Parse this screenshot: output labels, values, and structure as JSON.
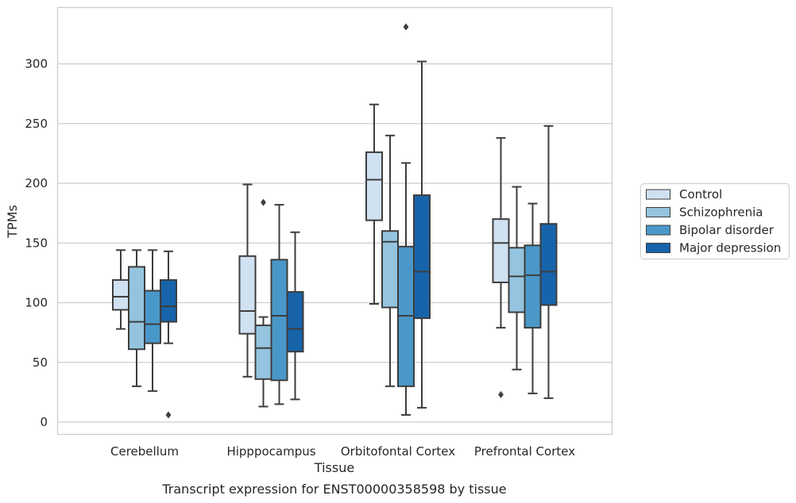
{
  "chart_data": {
    "type": "box",
    "title": "Transcript expression for ENST00000358598 by tissue",
    "xlabel": "Tissue",
    "ylabel": "TPMs",
    "ylim": [
      -10,
      335
    ],
    "yticks": [
      0,
      50,
      100,
      150,
      200,
      250,
      300
    ],
    "grid": "horizontal",
    "legend_position": "right",
    "categories": [
      "Cerebellum",
      "Hipppocampus",
      "Orbitofontal Cortex",
      "Prefrontal Cortex"
    ],
    "series": [
      {
        "name": "Control",
        "color": "#d0e1f2",
        "boxes": [
          {
            "whisker_low": 78,
            "q1": 94,
            "median": 105,
            "q3": 119,
            "whisker_high": 144,
            "outliers": []
          },
          {
            "whisker_low": 38,
            "q1": 74,
            "median": 93,
            "q3": 139,
            "whisker_high": 199,
            "outliers": []
          },
          {
            "whisker_low": 99,
            "q1": 169,
            "median": 203,
            "q3": 226,
            "whisker_high": 266,
            "outliers": []
          },
          {
            "whisker_low": 79,
            "q1": 117,
            "median": 150,
            "q3": 170,
            "whisker_high": 238,
            "outliers": [
              23
            ]
          }
        ]
      },
      {
        "name": "Schizophrenia",
        "color": "#94c4df",
        "boxes": [
          {
            "whisker_low": 30,
            "q1": 61,
            "median": 84,
            "q3": 130,
            "whisker_high": 144,
            "outliers": []
          },
          {
            "whisker_low": 13,
            "q1": 36,
            "median": 62,
            "q3": 81,
            "whisker_high": 88,
            "outliers": [
              184
            ]
          },
          {
            "whisker_low": 30,
            "q1": 96,
            "median": 151,
            "q3": 160,
            "whisker_high": 240,
            "outliers": []
          },
          {
            "whisker_low": 44,
            "q1": 92,
            "median": 122,
            "q3": 146,
            "whisker_high": 197,
            "outliers": []
          }
        ]
      },
      {
        "name": "Bipolar disorder",
        "color": "#4a98c9",
        "boxes": [
          {
            "whisker_low": 26,
            "q1": 66,
            "median": 82,
            "q3": 110,
            "whisker_high": 144,
            "outliers": []
          },
          {
            "whisker_low": 15,
            "q1": 35,
            "median": 89,
            "q3": 136,
            "whisker_high": 182,
            "outliers": []
          },
          {
            "whisker_low": 6,
            "q1": 30,
            "median": 89,
            "q3": 147,
            "whisker_high": 217,
            "outliers": [
              331
            ]
          },
          {
            "whisker_low": 24,
            "q1": 79,
            "median": 123,
            "q3": 148,
            "whisker_high": 183,
            "outliers": []
          }
        ]
      },
      {
        "name": "Major depression",
        "color": "#1764ab",
        "boxes": [
          {
            "whisker_low": 66,
            "q1": 84,
            "median": 97,
            "q3": 119,
            "whisker_high": 143,
            "outliers": [
              6
            ]
          },
          {
            "whisker_low": 19,
            "q1": 59,
            "median": 78,
            "q3": 109,
            "whisker_high": 159,
            "outliers": []
          },
          {
            "whisker_low": 12,
            "q1": 87,
            "median": 126,
            "q3": 190,
            "whisker_high": 302,
            "outliers": []
          },
          {
            "whisker_low": 20,
            "q1": 98,
            "median": 126,
            "q3": 166,
            "whisker_high": 248,
            "outliers": []
          }
        ]
      }
    ]
  }
}
